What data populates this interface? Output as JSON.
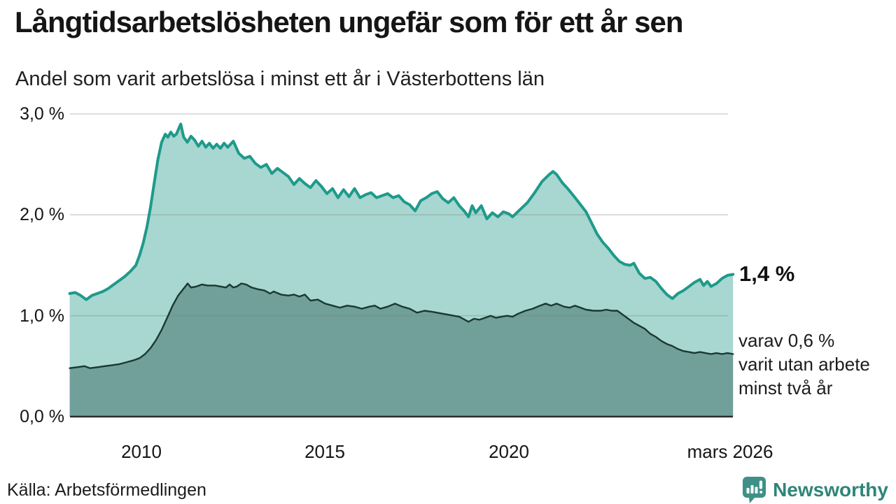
{
  "header": {
    "title": "Långtidsarbetslösheten ungefär som för ett år sen",
    "subtitle": "Andel som varit arbetslösa i minst ett år i Västerbottens län"
  },
  "annotations": {
    "latest_value": "1,4 %",
    "note": "varav 0,6 %\nvarit utan arbete\nminst två år"
  },
  "footer": {
    "source": "Källa: Arbetsförmedlingen",
    "logo_text": "Newsworthy",
    "logo_icon": "newsworthy-speech-bubble-bar-chart-icon"
  },
  "colors": {
    "line_1yr": "#1e9a8b",
    "fill_1yr": "#a7d7d0",
    "line_2yr": "#1b3833",
    "fill_2yr": "#70a099",
    "gridline": "rgba(130,130,130,0.35)",
    "axis_line": "#2b2b2b",
    "logo_teal": "#3d9186"
  },
  "chart_data": {
    "type": "area",
    "title": "Långtidsarbetslösheten ungefär som för ett år sen",
    "subtitle": "Andel som varit arbetslösa i minst ett år i Västerbottens län",
    "unit": "%",
    "ylim": [
      0,
      3
    ],
    "grid": true,
    "x_range": [
      2008.05,
      2026.1
    ],
    "y_axis": {
      "tick_labels": [
        "0,0 %",
        "1,0 %",
        "2,0 %",
        "3,0 %"
      ],
      "grid_values": [
        1,
        2,
        3
      ]
    },
    "x_axis": {
      "tick_labels": [
        "2010",
        "2015",
        "2020",
        "mars 2026"
      ],
      "tick_positions": [
        2010,
        2015,
        2020,
        2026.05
      ]
    },
    "latest": {
      "unemployed_min_1yr": 1.4,
      "unemployed_min_2yr": 0.6,
      "period": "mars 2026"
    },
    "series": [
      {
        "name": "Arbetslösa minst ett år",
        "points": [
          [
            2008.05,
            1.22
          ],
          [
            2008.2,
            1.23
          ],
          [
            2008.35,
            1.2
          ],
          [
            2008.5,
            1.16
          ],
          [
            2008.65,
            1.2
          ],
          [
            2008.8,
            1.22
          ],
          [
            2008.95,
            1.24
          ],
          [
            2009.1,
            1.27
          ],
          [
            2009.25,
            1.31
          ],
          [
            2009.4,
            1.35
          ],
          [
            2009.55,
            1.39
          ],
          [
            2009.7,
            1.44
          ],
          [
            2009.85,
            1.5
          ],
          [
            2009.95,
            1.6
          ],
          [
            2010.05,
            1.72
          ],
          [
            2010.15,
            1.88
          ],
          [
            2010.25,
            2.08
          ],
          [
            2010.35,
            2.32
          ],
          [
            2010.45,
            2.55
          ],
          [
            2010.55,
            2.72
          ],
          [
            2010.65,
            2.8
          ],
          [
            2010.72,
            2.77
          ],
          [
            2010.8,
            2.82
          ],
          [
            2010.88,
            2.78
          ],
          [
            2010.95,
            2.8
          ],
          [
            2011.07,
            2.9
          ],
          [
            2011.15,
            2.77
          ],
          [
            2011.25,
            2.72
          ],
          [
            2011.35,
            2.78
          ],
          [
            2011.45,
            2.74
          ],
          [
            2011.55,
            2.68
          ],
          [
            2011.65,
            2.73
          ],
          [
            2011.75,
            2.67
          ],
          [
            2011.85,
            2.71
          ],
          [
            2011.95,
            2.66
          ],
          [
            2012.05,
            2.7
          ],
          [
            2012.15,
            2.66
          ],
          [
            2012.25,
            2.71
          ],
          [
            2012.35,
            2.67
          ],
          [
            2012.5,
            2.73
          ],
          [
            2012.65,
            2.61
          ],
          [
            2012.8,
            2.56
          ],
          [
            2012.95,
            2.58
          ],
          [
            2013.1,
            2.51
          ],
          [
            2013.25,
            2.47
          ],
          [
            2013.4,
            2.5
          ],
          [
            2013.55,
            2.41
          ],
          [
            2013.7,
            2.46
          ],
          [
            2013.85,
            2.42
          ],
          [
            2014.0,
            2.38
          ],
          [
            2014.15,
            2.3
          ],
          [
            2014.3,
            2.36
          ],
          [
            2014.45,
            2.31
          ],
          [
            2014.6,
            2.27
          ],
          [
            2014.75,
            2.34
          ],
          [
            2014.9,
            2.28
          ],
          [
            2015.05,
            2.21
          ],
          [
            2015.2,
            2.26
          ],
          [
            2015.35,
            2.17
          ],
          [
            2015.5,
            2.25
          ],
          [
            2015.65,
            2.18
          ],
          [
            2015.8,
            2.26
          ],
          [
            2015.95,
            2.17
          ],
          [
            2016.1,
            2.2
          ],
          [
            2016.25,
            2.22
          ],
          [
            2016.4,
            2.17
          ],
          [
            2016.55,
            2.19
          ],
          [
            2016.7,
            2.21
          ],
          [
            2016.85,
            2.17
          ],
          [
            2017.0,
            2.19
          ],
          [
            2017.15,
            2.13
          ],
          [
            2017.3,
            2.1
          ],
          [
            2017.45,
            2.04
          ],
          [
            2017.6,
            2.14
          ],
          [
            2017.75,
            2.17
          ],
          [
            2017.9,
            2.21
          ],
          [
            2018.05,
            2.23
          ],
          [
            2018.2,
            2.16
          ],
          [
            2018.35,
            2.12
          ],
          [
            2018.5,
            2.17
          ],
          [
            2018.65,
            2.09
          ],
          [
            2018.78,
            2.04
          ],
          [
            2018.9,
            1.98
          ],
          [
            2019.0,
            2.09
          ],
          [
            2019.1,
            2.02
          ],
          [
            2019.25,
            2.09
          ],
          [
            2019.4,
            1.96
          ],
          [
            2019.55,
            2.02
          ],
          [
            2019.7,
            1.98
          ],
          [
            2019.85,
            2.03
          ],
          [
            2020.0,
            2.01
          ],
          [
            2020.1,
            1.98
          ],
          [
            2020.3,
            2.05
          ],
          [
            2020.5,
            2.12
          ],
          [
            2020.7,
            2.22
          ],
          [
            2020.9,
            2.33
          ],
          [
            2021.1,
            2.4
          ],
          [
            2021.2,
            2.43
          ],
          [
            2021.3,
            2.4
          ],
          [
            2021.45,
            2.32
          ],
          [
            2021.6,
            2.26
          ],
          [
            2021.8,
            2.17
          ],
          [
            2021.95,
            2.1
          ],
          [
            2022.1,
            2.03
          ],
          [
            2022.25,
            1.92
          ],
          [
            2022.4,
            1.81
          ],
          [
            2022.55,
            1.73
          ],
          [
            2022.7,
            1.67
          ],
          [
            2022.85,
            1.6
          ],
          [
            2023.0,
            1.54
          ],
          [
            2023.15,
            1.51
          ],
          [
            2023.3,
            1.5
          ],
          [
            2023.4,
            1.52
          ],
          [
            2023.55,
            1.42
          ],
          [
            2023.7,
            1.37
          ],
          [
            2023.85,
            1.38
          ],
          [
            2024.0,
            1.34
          ],
          [
            2024.15,
            1.27
          ],
          [
            2024.3,
            1.21
          ],
          [
            2024.45,
            1.17
          ],
          [
            2024.6,
            1.22
          ],
          [
            2024.75,
            1.25
          ],
          [
            2024.9,
            1.29
          ],
          [
            2025.05,
            1.33
          ],
          [
            2025.2,
            1.36
          ],
          [
            2025.3,
            1.3
          ],
          [
            2025.4,
            1.34
          ],
          [
            2025.5,
            1.29
          ],
          [
            2025.65,
            1.32
          ],
          [
            2025.8,
            1.37
          ],
          [
            2025.95,
            1.4
          ],
          [
            2026.1,
            1.41
          ]
        ]
      },
      {
        "name": "Utan arbete minst två år",
        "points": [
          [
            2008.05,
            0.48
          ],
          [
            2008.25,
            0.49
          ],
          [
            2008.45,
            0.5
          ],
          [
            2008.6,
            0.48
          ],
          [
            2008.8,
            0.49
          ],
          [
            2009.0,
            0.5
          ],
          [
            2009.2,
            0.51
          ],
          [
            2009.4,
            0.52
          ],
          [
            2009.6,
            0.54
          ],
          [
            2009.8,
            0.56
          ],
          [
            2009.95,
            0.58
          ],
          [
            2010.1,
            0.62
          ],
          [
            2010.25,
            0.68
          ],
          [
            2010.4,
            0.76
          ],
          [
            2010.55,
            0.86
          ],
          [
            2010.7,
            0.98
          ],
          [
            2010.85,
            1.1
          ],
          [
            2011.0,
            1.2
          ],
          [
            2011.15,
            1.27
          ],
          [
            2011.26,
            1.32
          ],
          [
            2011.35,
            1.28
          ],
          [
            2011.5,
            1.29
          ],
          [
            2011.65,
            1.31
          ],
          [
            2011.8,
            1.3
          ],
          [
            2012.0,
            1.3
          ],
          [
            2012.15,
            1.29
          ],
          [
            2012.3,
            1.28
          ],
          [
            2012.4,
            1.31
          ],
          [
            2012.5,
            1.28
          ],
          [
            2012.6,
            1.29
          ],
          [
            2012.72,
            1.32
          ],
          [
            2012.85,
            1.31
          ],
          [
            2013.0,
            1.28
          ],
          [
            2013.2,
            1.26
          ],
          [
            2013.35,
            1.25
          ],
          [
            2013.5,
            1.22
          ],
          [
            2013.6,
            1.24
          ],
          [
            2013.8,
            1.21
          ],
          [
            2014.0,
            1.2
          ],
          [
            2014.15,
            1.21
          ],
          [
            2014.3,
            1.19
          ],
          [
            2014.45,
            1.21
          ],
          [
            2014.6,
            1.15
          ],
          [
            2014.8,
            1.16
          ],
          [
            2015.0,
            1.12
          ],
          [
            2015.2,
            1.1
          ],
          [
            2015.4,
            1.08
          ],
          [
            2015.6,
            1.1
          ],
          [
            2015.8,
            1.09
          ],
          [
            2016.0,
            1.07
          ],
          [
            2016.2,
            1.09
          ],
          [
            2016.35,
            1.1
          ],
          [
            2016.5,
            1.07
          ],
          [
            2016.7,
            1.09
          ],
          [
            2016.9,
            1.12
          ],
          [
            2017.1,
            1.09
          ],
          [
            2017.3,
            1.07
          ],
          [
            2017.5,
            1.03
          ],
          [
            2017.7,
            1.05
          ],
          [
            2017.9,
            1.04
          ],
          [
            2018.05,
            1.03
          ],
          [
            2018.2,
            1.02
          ],
          [
            2018.35,
            1.01
          ],
          [
            2018.5,
            1.0
          ],
          [
            2018.65,
            0.99
          ],
          [
            2018.8,
            0.96
          ],
          [
            2018.9,
            0.94
          ],
          [
            2019.05,
            0.97
          ],
          [
            2019.2,
            0.96
          ],
          [
            2019.35,
            0.98
          ],
          [
            2019.5,
            1.0
          ],
          [
            2019.65,
            0.98
          ],
          [
            2019.8,
            0.99
          ],
          [
            2019.95,
            1.0
          ],
          [
            2020.1,
            0.99
          ],
          [
            2020.25,
            1.02
          ],
          [
            2020.45,
            1.05
          ],
          [
            2020.65,
            1.07
          ],
          [
            2020.85,
            1.1
          ],
          [
            2021.0,
            1.12
          ],
          [
            2021.15,
            1.1
          ],
          [
            2021.3,
            1.12
          ],
          [
            2021.5,
            1.09
          ],
          [
            2021.65,
            1.08
          ],
          [
            2021.8,
            1.1
          ],
          [
            2021.95,
            1.08
          ],
          [
            2022.1,
            1.06
          ],
          [
            2022.3,
            1.05
          ],
          [
            2022.5,
            1.05
          ],
          [
            2022.65,
            1.06
          ],
          [
            2022.8,
            1.05
          ],
          [
            2022.95,
            1.05
          ],
          [
            2023.1,
            1.01
          ],
          [
            2023.25,
            0.97
          ],
          [
            2023.4,
            0.93
          ],
          [
            2023.55,
            0.9
          ],
          [
            2023.7,
            0.87
          ],
          [
            2023.85,
            0.82
          ],
          [
            2024.0,
            0.79
          ],
          [
            2024.15,
            0.75
          ],
          [
            2024.3,
            0.72
          ],
          [
            2024.45,
            0.7
          ],
          [
            2024.6,
            0.67
          ],
          [
            2024.75,
            0.65
          ],
          [
            2024.9,
            0.64
          ],
          [
            2025.05,
            0.63
          ],
          [
            2025.2,
            0.64
          ],
          [
            2025.35,
            0.63
          ],
          [
            2025.5,
            0.62
          ],
          [
            2025.65,
            0.63
          ],
          [
            2025.8,
            0.62
          ],
          [
            2025.95,
            0.63
          ],
          [
            2026.1,
            0.62
          ]
        ]
      }
    ]
  }
}
